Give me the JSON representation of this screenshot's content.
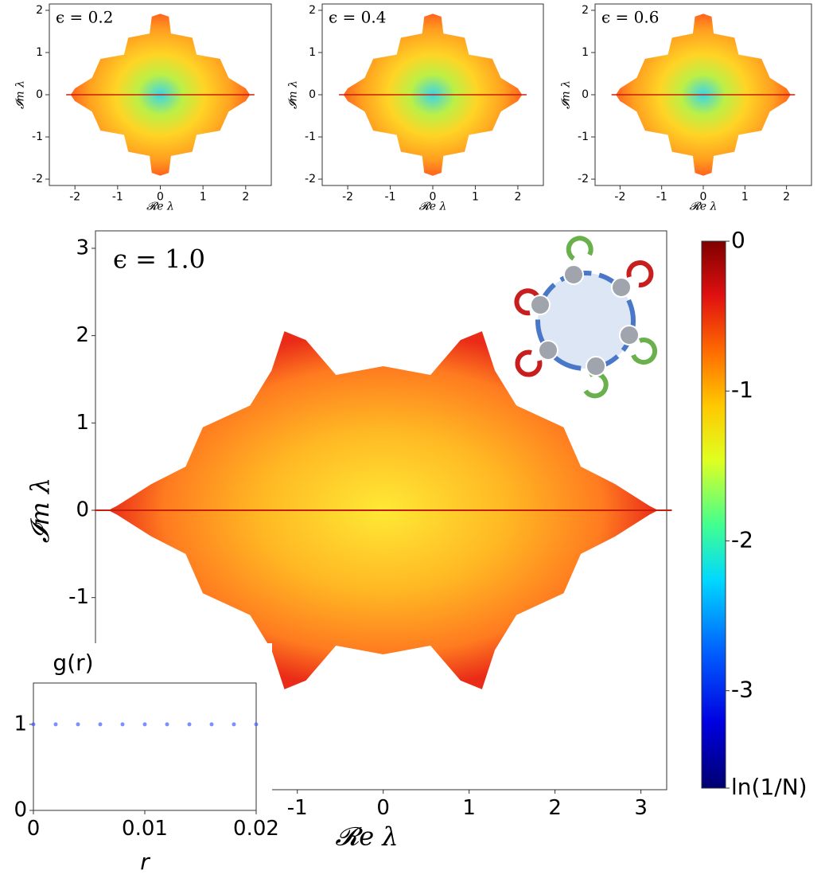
{
  "chart_data": [
    {
      "type": "density",
      "annotation": "ϵ = 0.2",
      "xlabel": "𝓡e λ",
      "ylabel": "𝓘m λ",
      "xlim": [
        -2.6,
        2.6
      ],
      "ylim": [
        -2.15,
        2.15
      ],
      "xticks": [
        -2,
        -1,
        0,
        1,
        2
      ],
      "yticks": [
        -2,
        -1,
        0,
        1,
        2
      ]
    },
    {
      "type": "density",
      "annotation": "ϵ = 0.4",
      "xlabel": "𝓡e λ",
      "ylabel": "𝓘m λ",
      "xlim": [
        -2.6,
        2.6
      ],
      "ylim": [
        -2.15,
        2.15
      ],
      "xticks": [
        -2,
        -1,
        0,
        1,
        2
      ],
      "yticks": [
        -2,
        -1,
        0,
        1,
        2
      ]
    },
    {
      "type": "density",
      "annotation": "ϵ = 0.6",
      "xlabel": "𝓡e λ",
      "ylabel": "𝓘m λ",
      "xlim": [
        -2.6,
        2.6
      ],
      "ylim": [
        -2.15,
        2.15
      ],
      "xticks": [
        -2,
        -1,
        0,
        1,
        2
      ],
      "yticks": [
        -2,
        -1,
        0,
        1,
        2
      ]
    },
    {
      "type": "density",
      "annotation": "ϵ = 1.0",
      "xlabel": "𝓡e λ",
      "ylabel": "𝓘m λ",
      "xlim": [
        -3.35,
        3.3
      ],
      "ylim": [
        -3.2,
        3.2
      ],
      "xticks": [
        -1,
        0,
        1,
        2,
        3
      ],
      "yticks": [
        -1,
        0,
        1,
        2,
        3
      ]
    },
    {
      "type": "scatter",
      "title": "g(r)",
      "xlabel": "r",
      "xlim": [
        0,
        0.02
      ],
      "ylim": [
        0,
        1.48
      ],
      "xticks": [
        0,
        0.01,
        0.02
      ],
      "yticks": [
        0,
        1
      ],
      "color": "#4a5cff",
      "x": [
        0,
        0.002,
        0.004,
        0.006,
        0.008,
        0.01,
        0.012,
        0.014,
        0.016,
        0.018,
        0.02
      ],
      "values": [
        1,
        1,
        1,
        1,
        1,
        1,
        1,
        1,
        1,
        1,
        1
      ]
    },
    {
      "type": "colorbar",
      "ylim": [
        -3.65,
        0
      ],
      "yticks": [
        0,
        -1,
        -2,
        -3,
        {
          "value": -3.65,
          "label": "ln(1/N)"
        }
      ]
    }
  ]
}
